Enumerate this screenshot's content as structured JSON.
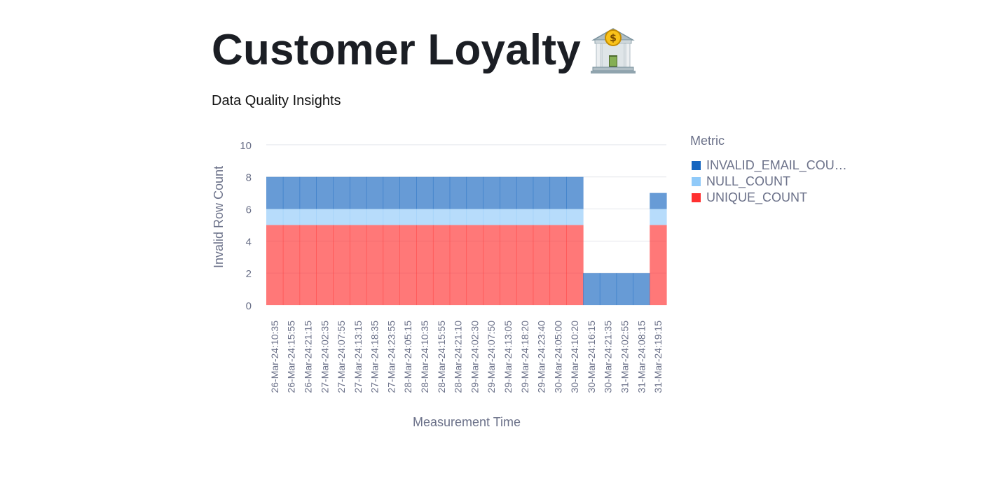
{
  "page": {
    "title": "Customer Loyalty",
    "title_icon": "bank-icon",
    "subtitle": "Data Quality Insights"
  },
  "colors": {
    "invalid_email": "#1565c0",
    "null_count": "#90caf9",
    "unique_count": "#ff3030",
    "axis_text": "#6b7189",
    "grid": "#e4e6ec"
  },
  "chart_data": {
    "type": "bar",
    "stacked": true,
    "ylabel": "Invalid Row Count",
    "xlabel": "Measurement Time",
    "ylim": [
      0,
      11
    ],
    "yticks": [
      0,
      2,
      4,
      6,
      8,
      10
    ],
    "grid": true,
    "legend_title": "Metric",
    "legend_position": "right",
    "categories": [
      "26-Mar-24:10:35",
      "26-Mar-24:15:55",
      "26-Mar-24:21:15",
      "27-Mar-24:02:35",
      "27-Mar-24:07:55",
      "27-Mar-24:13:15",
      "27-Mar-24:18:35",
      "27-Mar-24:23:55",
      "28-Mar-24:05:15",
      "28-Mar-24:10:35",
      "28-Mar-24:15:55",
      "28-Mar-24:21:10",
      "29-Mar-24:02:30",
      "29-Mar-24:07:50",
      "29-Mar-24:13:05",
      "29-Mar-24:18:20",
      "29-Mar-24:23:40",
      "30-Mar-24:05:00",
      "30-Mar-24:10:20",
      "30-Mar-24:16:15",
      "30-Mar-24:21:35",
      "31-Mar-24:02:55",
      "31-Mar-24:08:15",
      "31-Mar-24:19:15"
    ],
    "series": [
      {
        "name": "UNIQUE_COUNT",
        "color": "#ff3030",
        "values": [
          5,
          5,
          5,
          5,
          5,
          5,
          5,
          5,
          5,
          5,
          5,
          5,
          5,
          5,
          5,
          5,
          5,
          5,
          5,
          0,
          0,
          0,
          0,
          5
        ]
      },
      {
        "name": "NULL_COUNT",
        "color": "#90caf9",
        "values": [
          1,
          1,
          1,
          1,
          1,
          1,
          1,
          1,
          1,
          1,
          1,
          1,
          1,
          1,
          1,
          1,
          1,
          1,
          1,
          0,
          0,
          0,
          0,
          1
        ]
      },
      {
        "name": "INVALID_EMAIL_COUNT",
        "legend_label": "INVALID_EMAIL_COU…",
        "color": "#1565c0",
        "values": [
          2,
          2,
          2,
          2,
          2,
          2,
          2,
          2,
          2,
          2,
          2,
          2,
          2,
          2,
          2,
          2,
          2,
          2,
          2,
          2,
          2,
          2,
          2,
          1
        ]
      }
    ]
  }
}
